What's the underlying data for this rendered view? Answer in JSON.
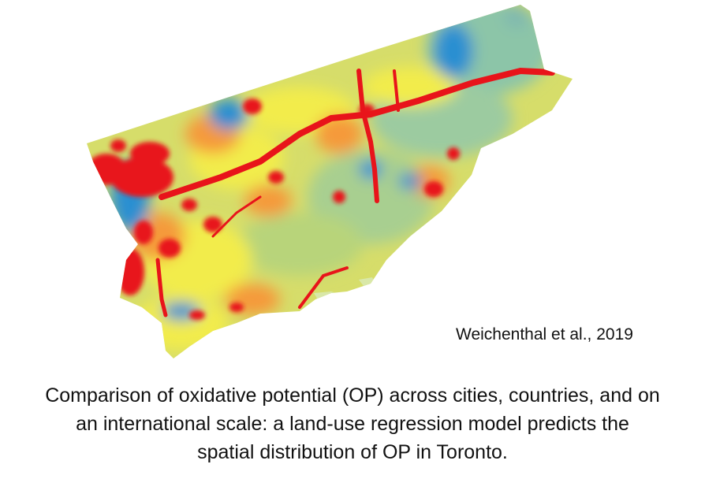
{
  "map": {
    "region": "Toronto",
    "variable": "oxidative potential (OP)",
    "colors": {
      "low": "#2b8fd1",
      "low_mid": "#8cc5a8",
      "mid": "#b8d47a",
      "mid_high": "#f2ec4c",
      "high": "#f59a3a",
      "highest": "#e8141a",
      "shoreline": "#d9e8a8"
    }
  },
  "citation": "Weichenthal et al., 2019",
  "caption": {
    "line1": "Comparison of oxidative potential (OP) across cities, countries, and on",
    "line2": "an international scale: a land-use regression model predicts the",
    "line3": "spatial distribution of OP in Toronto."
  }
}
